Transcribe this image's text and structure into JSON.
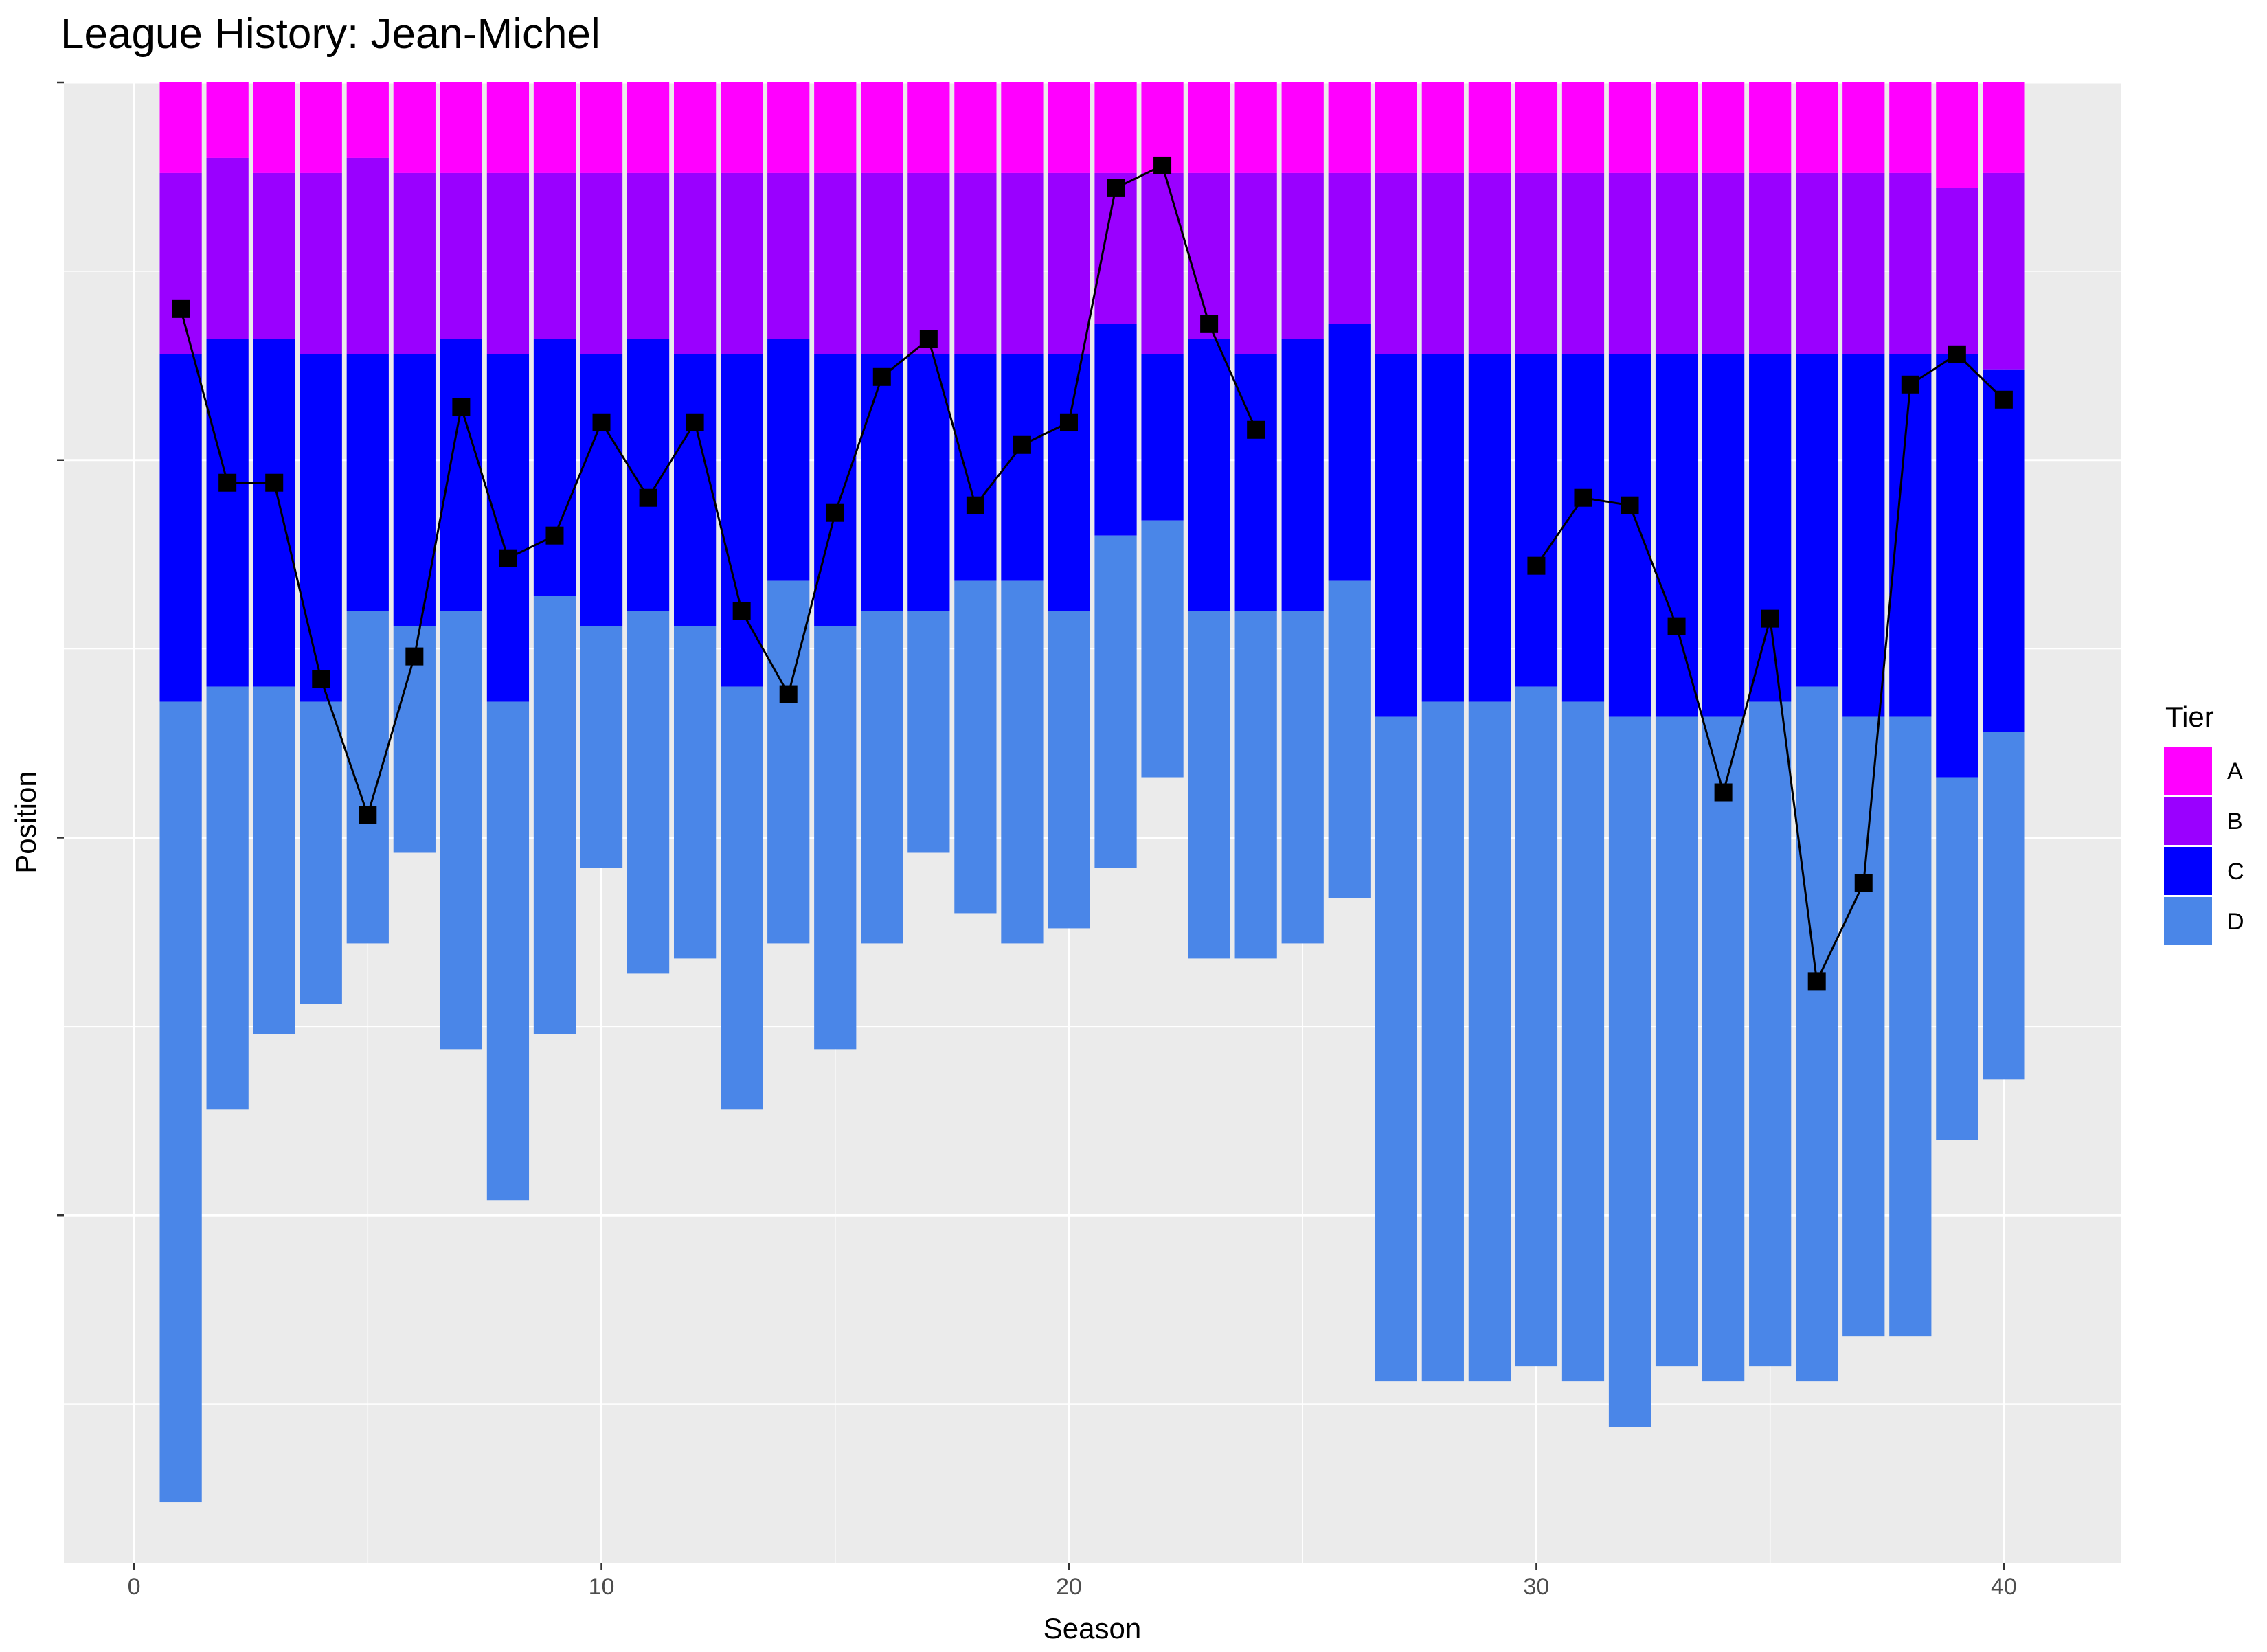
{
  "chart_data": {
    "type": "bar",
    "title": "League History: Jean-Michel",
    "xlabel": "Season",
    "ylabel": "Position",
    "xlim": [
      -1.5,
      42.5
    ],
    "xticks": [
      0,
      10,
      20,
      30,
      40
    ],
    "xtick_labels": [
      "0",
      "10",
      "20",
      "30",
      "40"
    ],
    "ylim": [
      0,
      98
    ],
    "y_reversed": true,
    "y_tick_labels_shown": false,
    "grid": true,
    "stacked": true,
    "legend": {
      "title": "Tier",
      "position": "right",
      "entries": [
        "A",
        "B",
        "C",
        "D"
      ]
    },
    "tier_colors": {
      "A": "#FF00FF",
      "B": "#9A00FF",
      "C": "#0000FF",
      "D": "#4A86E8"
    },
    "seasons": [
      1,
      2,
      3,
      4,
      5,
      6,
      7,
      8,
      9,
      10,
      11,
      12,
      13,
      14,
      15,
      16,
      17,
      18,
      19,
      20,
      21,
      22,
      23,
      24,
      25,
      26,
      27,
      28,
      29,
      30,
      31,
      32,
      33,
      34,
      35,
      36,
      37,
      38,
      39,
      40
    ],
    "tier_bottoms": {
      "A": [
        6,
        5,
        6,
        6,
        5,
        6,
        6,
        6,
        6,
        6,
        6,
        6,
        6,
        6,
        6,
        6,
        6,
        6,
        6,
        6,
        6,
        6,
        6,
        6,
        6,
        6,
        6,
        6,
        6,
        6,
        6,
        6,
        6,
        6,
        6,
        6,
        6,
        6,
        7,
        6
      ],
      "B": [
        18,
        17,
        17,
        18,
        18,
        18,
        17,
        18,
        17,
        18,
        17,
        18,
        18,
        17,
        18,
        18,
        18,
        18,
        18,
        18,
        16,
        18,
        17,
        18,
        17,
        16,
        18,
        18,
        18,
        18,
        18,
        18,
        18,
        18,
        18,
        18,
        18,
        18,
        18,
        19
      ],
      "C": [
        41,
        40,
        40,
        41,
        35,
        36,
        35,
        41,
        34,
        36,
        35,
        36,
        40,
        33,
        36,
        35,
        35,
        33,
        33,
        35,
        30,
        29,
        35,
        35,
        35,
        33,
        42,
        41,
        41,
        40,
        41,
        42,
        42,
        42,
        41,
        40,
        42,
        42,
        46,
        43
      ],
      "D": [
        94,
        68,
        63,
        61,
        57,
        51,
        64,
        74,
        63,
        52,
        59,
        58,
        68,
        57,
        64,
        57,
        51,
        55,
        57,
        56,
        52,
        46,
        58,
        58,
        57,
        54,
        86,
        86,
        86,
        85,
        86,
        89,
        85,
        86,
        85,
        86,
        83,
        83,
        70,
        66
      ]
    },
    "line": {
      "name": "Position",
      "marker": "square",
      "values": [
        15,
        26.5,
        26.5,
        39.5,
        48.5,
        38,
        21.5,
        31.5,
        30,
        22.5,
        27.5,
        22.5,
        35,
        40.5,
        28.5,
        19.5,
        17,
        28,
        24,
        22.5,
        7,
        5.5,
        16,
        23,
        null,
        null,
        null,
        null,
        null,
        32,
        27.5,
        28,
        36,
        47,
        35.5,
        59.5,
        53,
        20,
        18,
        21
      ]
    }
  }
}
